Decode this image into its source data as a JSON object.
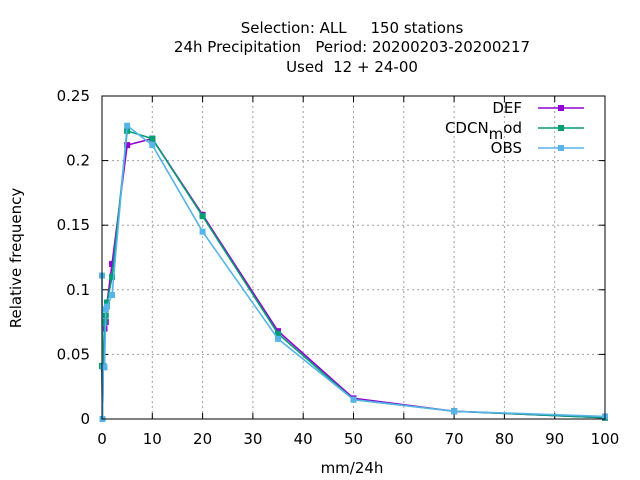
{
  "chart_data": {
    "type": "line",
    "title": [
      "Selection: ALL     150 stations",
      "24h Precipitation   Period: 20200203-20200217",
      "Used  12 + 24-00"
    ],
    "xlabel": "mm/24h",
    "ylabel": "Relative frequency",
    "xlim": [
      0,
      100
    ],
    "ylim": [
      0,
      0.25
    ],
    "xticks": [
      0,
      10,
      20,
      30,
      40,
      50,
      60,
      70,
      80,
      90,
      100
    ],
    "yticks": [
      0,
      0.05,
      0.1,
      0.15,
      0.2,
      0.25
    ],
    "xtick_labels": [
      "0",
      "10",
      "20",
      "30",
      "40",
      "50",
      "60",
      "70",
      "80",
      "90",
      "100"
    ],
    "ytick_labels": [
      "0",
      "0.05",
      "0.1",
      "0.15",
      "0.2",
      "0.25"
    ],
    "grid": true,
    "legend_position": "top-right",
    "series": [
      {
        "name": "DEF",
        "color": "#9400d3",
        "x": [
          0,
          0.1,
          0.25,
          0.5,
          0.75,
          1,
          2,
          5,
          10,
          20,
          35,
          50,
          70,
          100
        ],
        "y": [
          0.041,
          0.0,
          0.041,
          0.07,
          0.075,
          0.09,
          0.12,
          0.212,
          0.217,
          0.158,
          0.068,
          0.016,
          0.006,
          0.001
        ]
      },
      {
        "name": "CDCN",
        "name_subscript": "m",
        "name_suffix": "od",
        "color": "#009e73",
        "x": [
          0,
          0.1,
          0.25,
          0.5,
          0.75,
          1,
          2,
          5,
          10,
          20,
          35,
          50,
          70,
          100
        ],
        "y": [
          0.041,
          0.0,
          0.041,
          0.075,
          0.08,
          0.09,
          0.11,
          0.223,
          0.217,
          0.157,
          0.066,
          0.015,
          0.006,
          0.001
        ]
      },
      {
        "name": "OBS",
        "color": "#56b4e9",
        "x": [
          0,
          0.1,
          0.25,
          0.5,
          0.75,
          1,
          2,
          5,
          10,
          20,
          35,
          50,
          70,
          100
        ],
        "y": [
          0.111,
          0.0,
          0.04,
          0.04,
          0.085,
          0.087,
          0.096,
          0.227,
          0.212,
          0.145,
          0.062,
          0.015,
          0.006,
          0.002
        ]
      }
    ]
  }
}
